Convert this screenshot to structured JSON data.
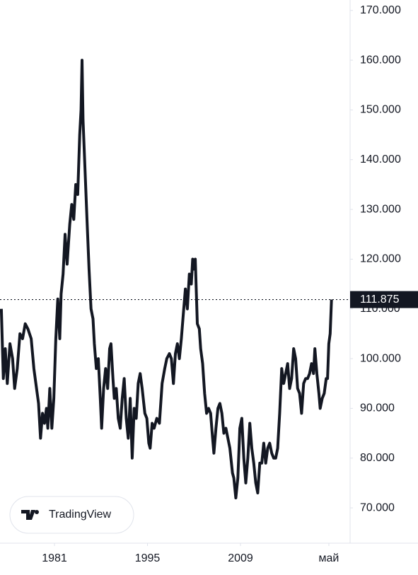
{
  "chart_data": {
    "type": "line",
    "watermark": "TradingView",
    "x": [
      1973.0,
      1973.3,
      1973.6,
      1973.9,
      1974.3,
      1974.7,
      1975.0,
      1975.4,
      1975.8,
      1976.2,
      1976.6,
      1977.0,
      1977.5,
      1977.9,
      1978.2,
      1978.6,
      1978.9,
      1979.2,
      1979.5,
      1979.8,
      1980.0,
      1980.3,
      1980.6,
      1980.9,
      1981.2,
      1981.5,
      1981.8,
      1982.0,
      1982.3,
      1982.6,
      1982.9,
      1983.3,
      1983.6,
      1983.9,
      1984.2,
      1984.5,
      1984.8,
      1985.0,
      1985.15,
      1985.3,
      1985.6,
      1985.9,
      1986.2,
      1986.5,
      1986.8,
      1987.0,
      1987.3,
      1987.6,
      1987.9,
      1988.1,
      1988.4,
      1988.7,
      1989.0,
      1989.3,
      1989.5,
      1989.8,
      1990.0,
      1990.3,
      1990.6,
      1990.9,
      1991.2,
      1991.5,
      1991.8,
      1992.1,
      1992.4,
      1992.7,
      1993.0,
      1993.3,
      1993.6,
      1993.9,
      1994.2,
      1994.6,
      1994.9,
      1995.2,
      1995.4,
      1995.7,
      1996.0,
      1996.4,
      1996.8,
      1997.2,
      1997.6,
      1997.9,
      1998.3,
      1998.6,
      1998.9,
      1999.2,
      1999.5,
      1999.8,
      2000.1,
      2000.4,
      2000.7,
      2001.0,
      2001.3,
      2001.6,
      2001.8,
      2002.0,
      2002.2,
      2002.5,
      2002.8,
      2003.0,
      2003.3,
      2003.6,
      2003.9,
      2004.2,
      2004.5,
      2004.8,
      2005.0,
      2005.3,
      2005.6,
      2005.9,
      2006.2,
      2006.5,
      2006.8,
      2007.1,
      2007.4,
      2007.8,
      2008.0,
      2008.3,
      2008.6,
      2008.9,
      2009.2,
      2009.5,
      2009.8,
      2010.1,
      2010.4,
      2010.7,
      2011.0,
      2011.3,
      2011.6,
      2011.9,
      2012.2,
      2012.5,
      2012.8,
      2013.1,
      2013.4,
      2013.7,
      2014.0,
      2014.3,
      2014.6,
      2014.9,
      2015.2,
      2015.5,
      2015.8,
      2016.1,
      2016.4,
      2016.7,
      2017.0,
      2017.3,
      2017.6,
      2017.9,
      2018.2,
      2018.5,
      2018.8,
      2019.1,
      2019.4,
      2019.7,
      2020.0,
      2020.2,
      2020.5,
      2020.8,
      2021.0,
      2021.3,
      2021.6,
      2021.9,
      2022.1,
      2022.3,
      2022.5,
      2022.7
    ],
    "series": [
      {
        "color": "#131722",
        "values": [
          110,
          96,
          102,
          95,
          103,
          100,
          94,
          98,
          105,
          104,
          107,
          106,
          104,
          98,
          95,
          91,
          84,
          89,
          87,
          90,
          86,
          94,
          86,
          92,
          104,
          112,
          104,
          113,
          117,
          125,
          119,
          127,
          131,
          128,
          135,
          133,
          145,
          150,
          160,
          148,
          138,
          128,
          118,
          110,
          108,
          103,
          98,
          100,
          92,
          86,
          94,
          98,
          94,
          102,
          103,
          96,
          92,
          94,
          88,
          86,
          92,
          96,
          88,
          84,
          92,
          80,
          90,
          88,
          95,
          97,
          94,
          89,
          88,
          83,
          82,
          87,
          86,
          88,
          87,
          95,
          98,
          100,
          101,
          100,
          95,
          101,
          103,
          100,
          104,
          109,
          114,
          110,
          117,
          115,
          120,
          118,
          120,
          107,
          106,
          102,
          99,
          93,
          89,
          90,
          89,
          84,
          81,
          86,
          90,
          91,
          89,
          85,
          86,
          84,
          82,
          77,
          76,
          72,
          76,
          86,
          88,
          80,
          75,
          80,
          87,
          82,
          79,
          75,
          73,
          79,
          79,
          83,
          79,
          82,
          83,
          81,
          80,
          80,
          82,
          89,
          98,
          95,
          97,
          99,
          94,
          96,
          102,
          100,
          94,
          93,
          89,
          95,
          96,
          96,
          97,
          99,
          97,
          102,
          97,
          93,
          90,
          92,
          93,
          96,
          96,
          103,
          105,
          111.875
        ]
      }
    ],
    "xlim": [
      1972.8,
      2025.5
    ],
    "xticks": [
      1981,
      1995,
      2009,
      {
        "value": 2022.3,
        "label": "май"
      }
    ],
    "ylim": [
      62.9,
      172.1
    ],
    "yticks": [
      {
        "value": 70,
        "label": "70.000"
      },
      {
        "value": 80,
        "label": "80.000"
      },
      {
        "value": 90,
        "label": "90.000"
      },
      {
        "value": 100,
        "label": "100.000"
      },
      {
        "value": 110,
        "label": "110.000"
      },
      {
        "value": 120,
        "label": "120.000"
      },
      {
        "value": 130,
        "label": "130.000"
      },
      {
        "value": 140,
        "label": "140.000"
      },
      {
        "value": 150,
        "label": "150.000"
      },
      {
        "value": 160,
        "label": "160.000"
      },
      {
        "value": 170,
        "label": "170.000"
      }
    ],
    "last_value": 111.875
  }
}
